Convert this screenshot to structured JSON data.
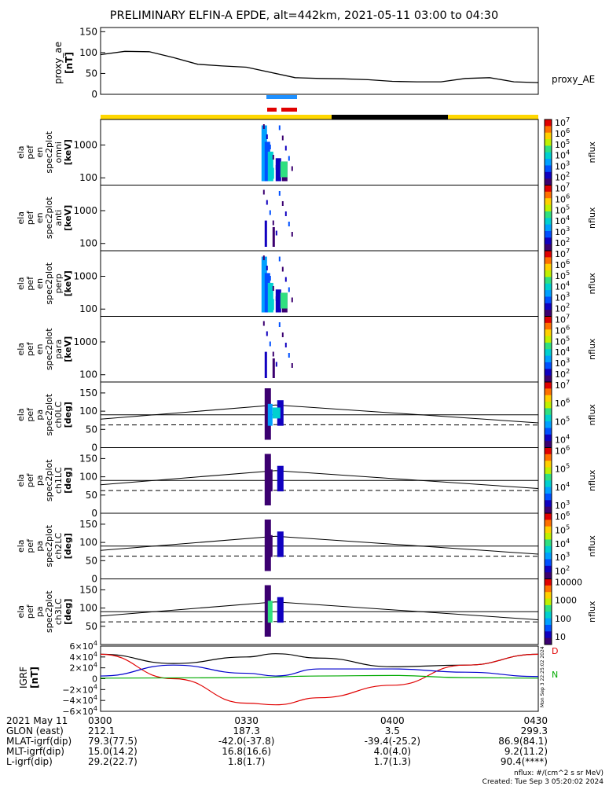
{
  "title": "PRELIMINARY ELFIN-A EPDE, alt=442km, 2021-05-11 03:00 to 04:30",
  "ae_panel": {
    "ylabel": "proxy_ae\n[nT]",
    "yticks": [
      "150",
      "100",
      "50",
      "0"
    ],
    "series_label": "proxy_AE"
  },
  "spec_panels": [
    {
      "ylabel": [
        "ela",
        "pef",
        "en",
        "spec2plot",
        "omni",
        "[keV]"
      ],
      "yticks": [
        "1000",
        "100"
      ],
      "cbar_ticks": [
        "10^7",
        "10^6",
        "10^5",
        "10^4",
        "10^3",
        "10^2"
      ],
      "cbar_label": "nflux"
    },
    {
      "ylabel": [
        "ela",
        "pef",
        "en",
        "spec2plot",
        "anti",
        "[keV]"
      ],
      "yticks": [
        "1000",
        "100"
      ],
      "cbar_ticks": [
        "10^7",
        "10^6",
        "10^5",
        "10^4",
        "10^3",
        "10^2"
      ],
      "cbar_label": "nflux"
    },
    {
      "ylabel": [
        "ela",
        "pef",
        "en",
        "spec2plot",
        "perp",
        "[keV]"
      ],
      "yticks": [
        "1000",
        "100"
      ],
      "cbar_ticks": [
        "10^7",
        "10^6",
        "10^5",
        "10^4",
        "10^3",
        "10^2"
      ],
      "cbar_label": "nflux"
    },
    {
      "ylabel": [
        "ela",
        "pef",
        "en",
        "spec2plot",
        "para",
        "[keV]"
      ],
      "yticks": [
        "1000",
        "100"
      ],
      "cbar_ticks": [
        "10^7",
        "10^6",
        "10^5",
        "10^4",
        "10^3",
        "10^2"
      ],
      "cbar_label": "nflux"
    }
  ],
  "pa_panels": [
    {
      "ylabel": [
        "ela",
        "pef",
        "pa",
        "spec2plot",
        "ch0LC",
        "[deg]"
      ],
      "yticks": [
        "150",
        "100",
        "50",
        "0"
      ],
      "cbar_ticks": [
        "10^7",
        "10^6",
        "10^5",
        "10^4"
      ],
      "cbar_label": "nflux"
    },
    {
      "ylabel": [
        "ela",
        "pef",
        "pa",
        "spec2plot",
        "ch1LC",
        "[deg]"
      ],
      "yticks": [
        "150",
        "100",
        "50",
        "0"
      ],
      "cbar_ticks": [
        "10^6",
        "10^5",
        "10^4",
        "10^3"
      ],
      "cbar_label": "nflux"
    },
    {
      "ylabel": [
        "ela",
        "pef",
        "pa",
        "spec2plot",
        "ch2LC",
        "[deg]"
      ],
      "yticks": [
        "150",
        "100",
        "50",
        "0"
      ],
      "cbar_ticks": [
        "10^6",
        "10^5",
        "10^4",
        "10^3",
        "10^2"
      ],
      "cbar_label": "nflux"
    },
    {
      "ylabel": [
        "ela",
        "pef",
        "pa",
        "spec2plot",
        "ch3LC",
        "[deg]"
      ],
      "yticks": [
        "150",
        "100",
        "50"
      ],
      "cbar_ticks": [
        "10000",
        "1000",
        "100",
        "10"
      ],
      "cbar_label": "nflux"
    }
  ],
  "igrf_panel": {
    "ylabel": "IGRF\n[nT]",
    "yticks": [
      "6×10^4",
      "4×10^4",
      "2×10^4",
      "0",
      "−2×10^4",
      "−4×10^4",
      "−6×10^4"
    ],
    "legend": [
      "D",
      "N"
    ],
    "side_text": "Mon Sep 3 22:25:02 2024"
  },
  "colors": {
    "sci_zone": "#ffd700",
    "shadow": "#000000",
    "ibo_blue": "#1e90ff",
    "ibo_red": "#e00000",
    "igrf_total": "#000000",
    "igrf_d": "#e00000",
    "igrf_e": "#0000cc",
    "igrf_n": "#00aa00"
  },
  "chart_data": [
    {
      "type": "line",
      "name": "proxy_AE",
      "x_unit": "minutes since 03:00",
      "x": [
        0,
        5,
        10,
        15,
        20,
        25,
        30,
        40,
        45,
        50,
        55,
        60,
        65,
        70,
        75,
        80,
        85,
        90
      ],
      "values": [
        95,
        103,
        102,
        88,
        72,
        68,
        65,
        40,
        38,
        37,
        35,
        31,
        30,
        30,
        38,
        40,
        30,
        28
      ],
      "ylim": [
        0,
        160
      ]
    },
    {
      "type": "line",
      "name": "IGRF components",
      "x_unit": "minutes since 03:00",
      "series": [
        {
          "name": "",
          "x": [
            0,
            15,
            30,
            36,
            45,
            60,
            75,
            90
          ],
          "values": [
            45000,
            28000,
            40000,
            46000,
            38000,
            22000,
            25000,
            45000
          ]
        },
        {
          "name": "D",
          "x": [
            0,
            15,
            30,
            36,
            45,
            60,
            75,
            90
          ],
          "values": [
            45000,
            0,
            -45000,
            -48000,
            -35000,
            -12000,
            25000,
            45000
          ]
        },
        {
          "name": "",
          "x": [
            0,
            15,
            30,
            36,
            45,
            60,
            75,
            90
          ],
          "values": [
            5000,
            25000,
            10000,
            5000,
            18000,
            18000,
            12000,
            4000
          ]
        },
        {
          "name": "N",
          "x": [
            0,
            30,
            45,
            60,
            75,
            90
          ],
          "values": [
            1000,
            2000,
            5000,
            6000,
            2000,
            1000
          ]
        }
      ],
      "ylim": [
        -60000,
        60000
      ]
    },
    {
      "type": "table",
      "name": "orbit ephemeris",
      "rows": [
        {
          "label": "2021 May 11",
          "values": [
            "0300",
            "0330",
            "0400",
            "0430"
          ]
        },
        {
          "label": "GLON (east)",
          "values": [
            "212.1",
            "187.3",
            "3.5",
            "299.3"
          ]
        },
        {
          "label": "MLAT-igrf(dip)",
          "values": [
            "79.3(77.5)",
            "-42.0(-37.8)",
            "-39.4(-25.2)",
            "86.9(84.1)"
          ]
        },
        {
          "label": "MLT-igrf(dip)",
          "values": [
            "15.0(14.2)",
            "16.8(16.6)",
            "4.0(4.0)",
            "9.2(11.2)"
          ]
        },
        {
          "label": "L-igrf(dip)",
          "values": [
            "29.2(22.7)",
            "1.8(1.7)",
            "1.7(1.3)",
            "90.4(****)"
          ]
        }
      ]
    }
  ],
  "footer": {
    "units": "nflux: #/(cm^2 s sr MeV)",
    "created": "Created: Tue Sep  3 05:20:02 2024"
  }
}
